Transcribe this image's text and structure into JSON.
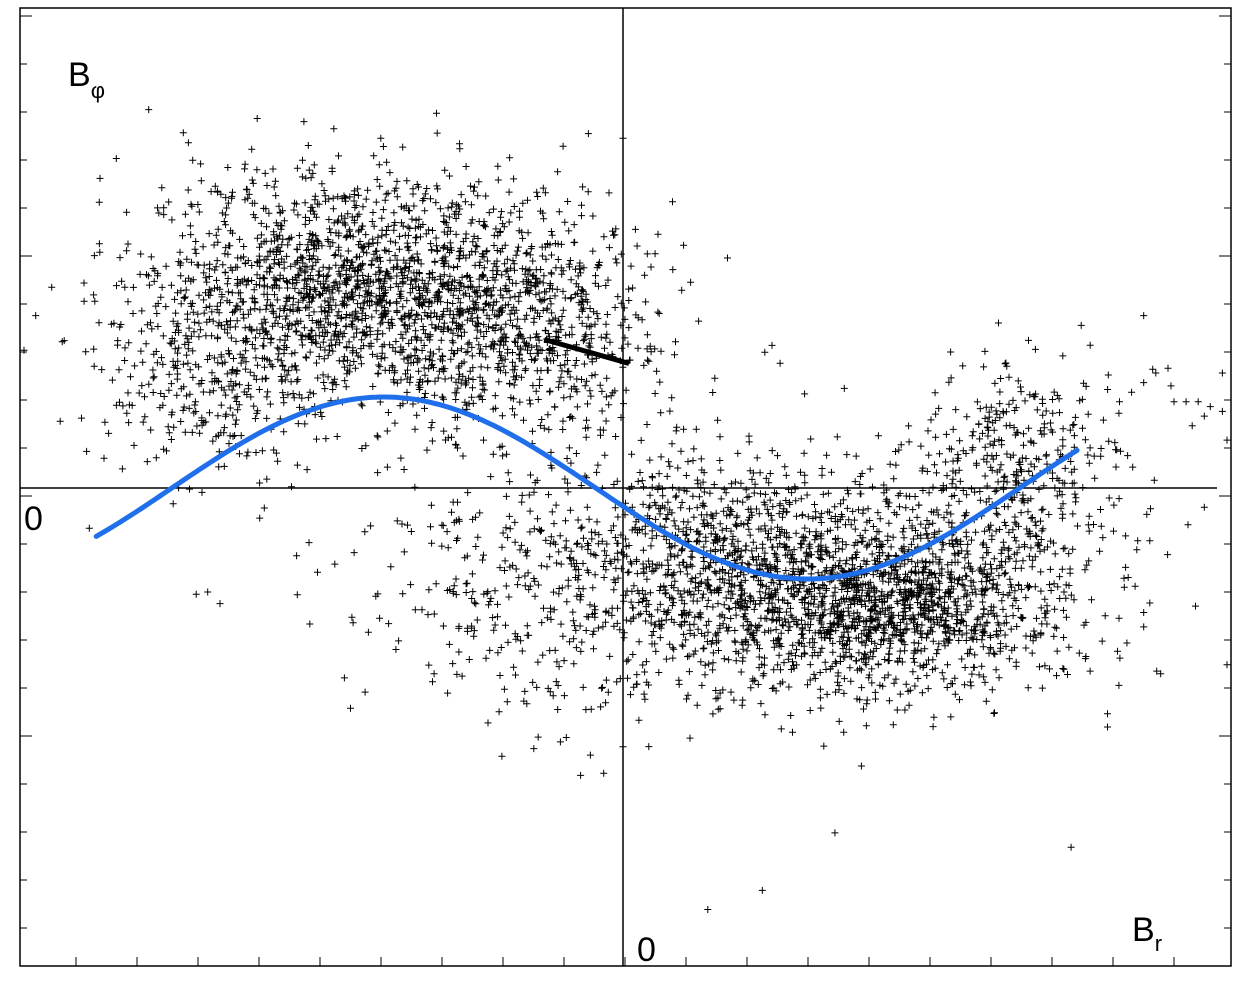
{
  "chart_data": {
    "type": "scatter",
    "title": "",
    "xlabel": {
      "main": "B",
      "sub": "r"
    },
    "ylabel": {
      "main": "B",
      "sub": "φ"
    },
    "origin_labels": {
      "x": "0",
      "y": "0"
    },
    "xlim": [
      -1.0,
      1.0
    ],
    "ylim": [
      -1.0,
      1.0
    ],
    "grid": false,
    "marker": "+",
    "colors": {
      "points": "#000000",
      "fit": "#1f6feb",
      "axes": "#000000"
    },
    "fit_curve": {
      "name": "",
      "type": "sine",
      "x_range": [
        -0.87,
        0.75
      ],
      "amplitude": 0.19,
      "offset": 0.025,
      "zero_crossing_x": -0.045,
      "half_period": 0.7
    },
    "band_segment": {
      "x": [
        -0.13,
        0.01
      ],
      "y": [
        0.31,
        0.26
      ]
    },
    "clusters": [
      {
        "cx": -0.45,
        "cy": 0.42,
        "sx": 0.17,
        "sy": 0.12,
        "n": 1500
      },
      {
        "cx": -0.18,
        "cy": 0.35,
        "sx": 0.12,
        "sy": 0.12,
        "n": 700
      },
      {
        "cx": -0.68,
        "cy": 0.22,
        "sx": 0.1,
        "sy": 0.1,
        "n": 300
      },
      {
        "cx": 0.42,
        "cy": -0.23,
        "sx": 0.16,
        "sy": 0.1,
        "n": 1700
      },
      {
        "cx": 0.18,
        "cy": -0.15,
        "sx": 0.12,
        "sy": 0.13,
        "n": 500
      },
      {
        "cx": 0.65,
        "cy": 0.05,
        "sx": 0.09,
        "sy": 0.11,
        "n": 350
      },
      {
        "cx": -0.05,
        "cy": -0.18,
        "sx": 0.2,
        "sy": 0.15,
        "n": 600
      }
    ],
    "outliers": [
      [
        -0.4,
        0.73
      ],
      [
        -0.24,
        0.61
      ],
      [
        0.0,
        0.73
      ],
      [
        -0.45,
        -0.46
      ],
      [
        -0.2,
        -0.56
      ],
      [
        -0.14,
        -0.52
      ],
      [
        -0.07,
        -0.6
      ],
      [
        0.0,
        -0.54
      ],
      [
        0.28,
        -0.51
      ],
      [
        0.35,
        -0.72
      ],
      [
        0.23,
        -0.84
      ],
      [
        0.14,
        -0.88
      ],
      [
        0.74,
        -0.75
      ],
      [
        0.86,
        0.36
      ],
      [
        0.99,
        0.24
      ],
      [
        1.0,
        0.1
      ],
      [
        -0.89,
        0.39
      ],
      [
        -0.97,
        0.36
      ],
      [
        0.96,
        -0.04
      ],
      [
        -0.57,
        0.52
      ]
    ],
    "branch_points": [
      [
        0.82,
        0.18
      ],
      [
        0.84,
        0.2
      ],
      [
        0.86,
        0.22
      ],
      [
        0.88,
        0.24
      ],
      [
        0.9,
        0.25
      ],
      [
        0.91,
        0.18
      ],
      [
        0.93,
        0.18
      ],
      [
        0.95,
        0.18
      ],
      [
        0.97,
        0.17
      ],
      [
        0.99,
        0.16
      ],
      [
        0.96,
        0.15
      ],
      [
        0.94,
        0.13
      ],
      [
        0.79,
        -0.08
      ],
      [
        0.81,
        -0.09
      ],
      [
        0.83,
        -0.1
      ],
      [
        0.85,
        -0.11
      ],
      [
        0.87,
        -0.11
      ],
      [
        0.87,
        -0.24
      ],
      [
        0.86,
        -0.26
      ],
      [
        0.86,
        -0.29
      ]
    ]
  }
}
